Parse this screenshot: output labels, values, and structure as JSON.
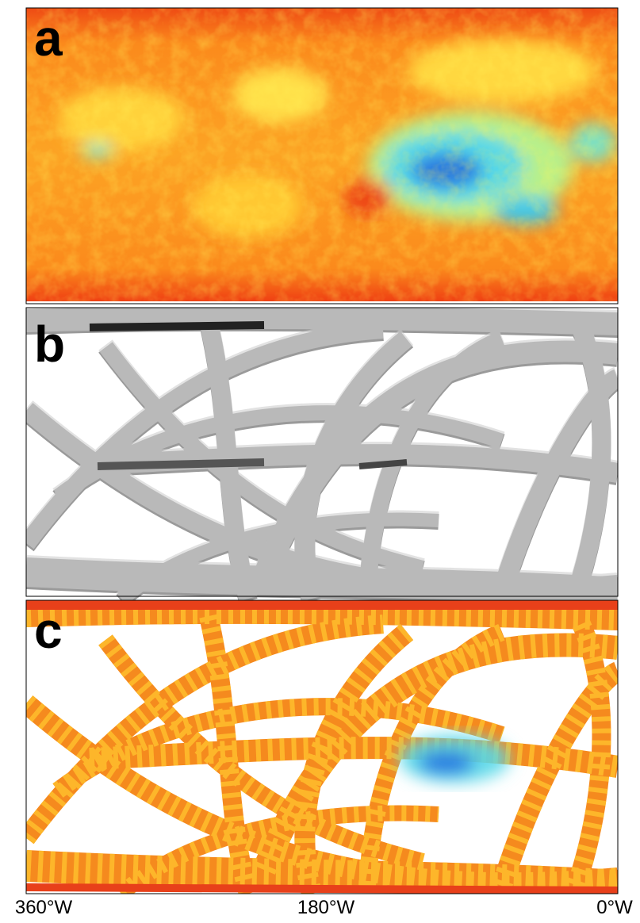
{
  "panels": [
    {
      "label": "a"
    },
    {
      "label": "b"
    },
    {
      "label": "c"
    }
  ],
  "x_axis": {
    "labels": [
      "360°W",
      "180°W",
      "0°W"
    ]
  }
}
